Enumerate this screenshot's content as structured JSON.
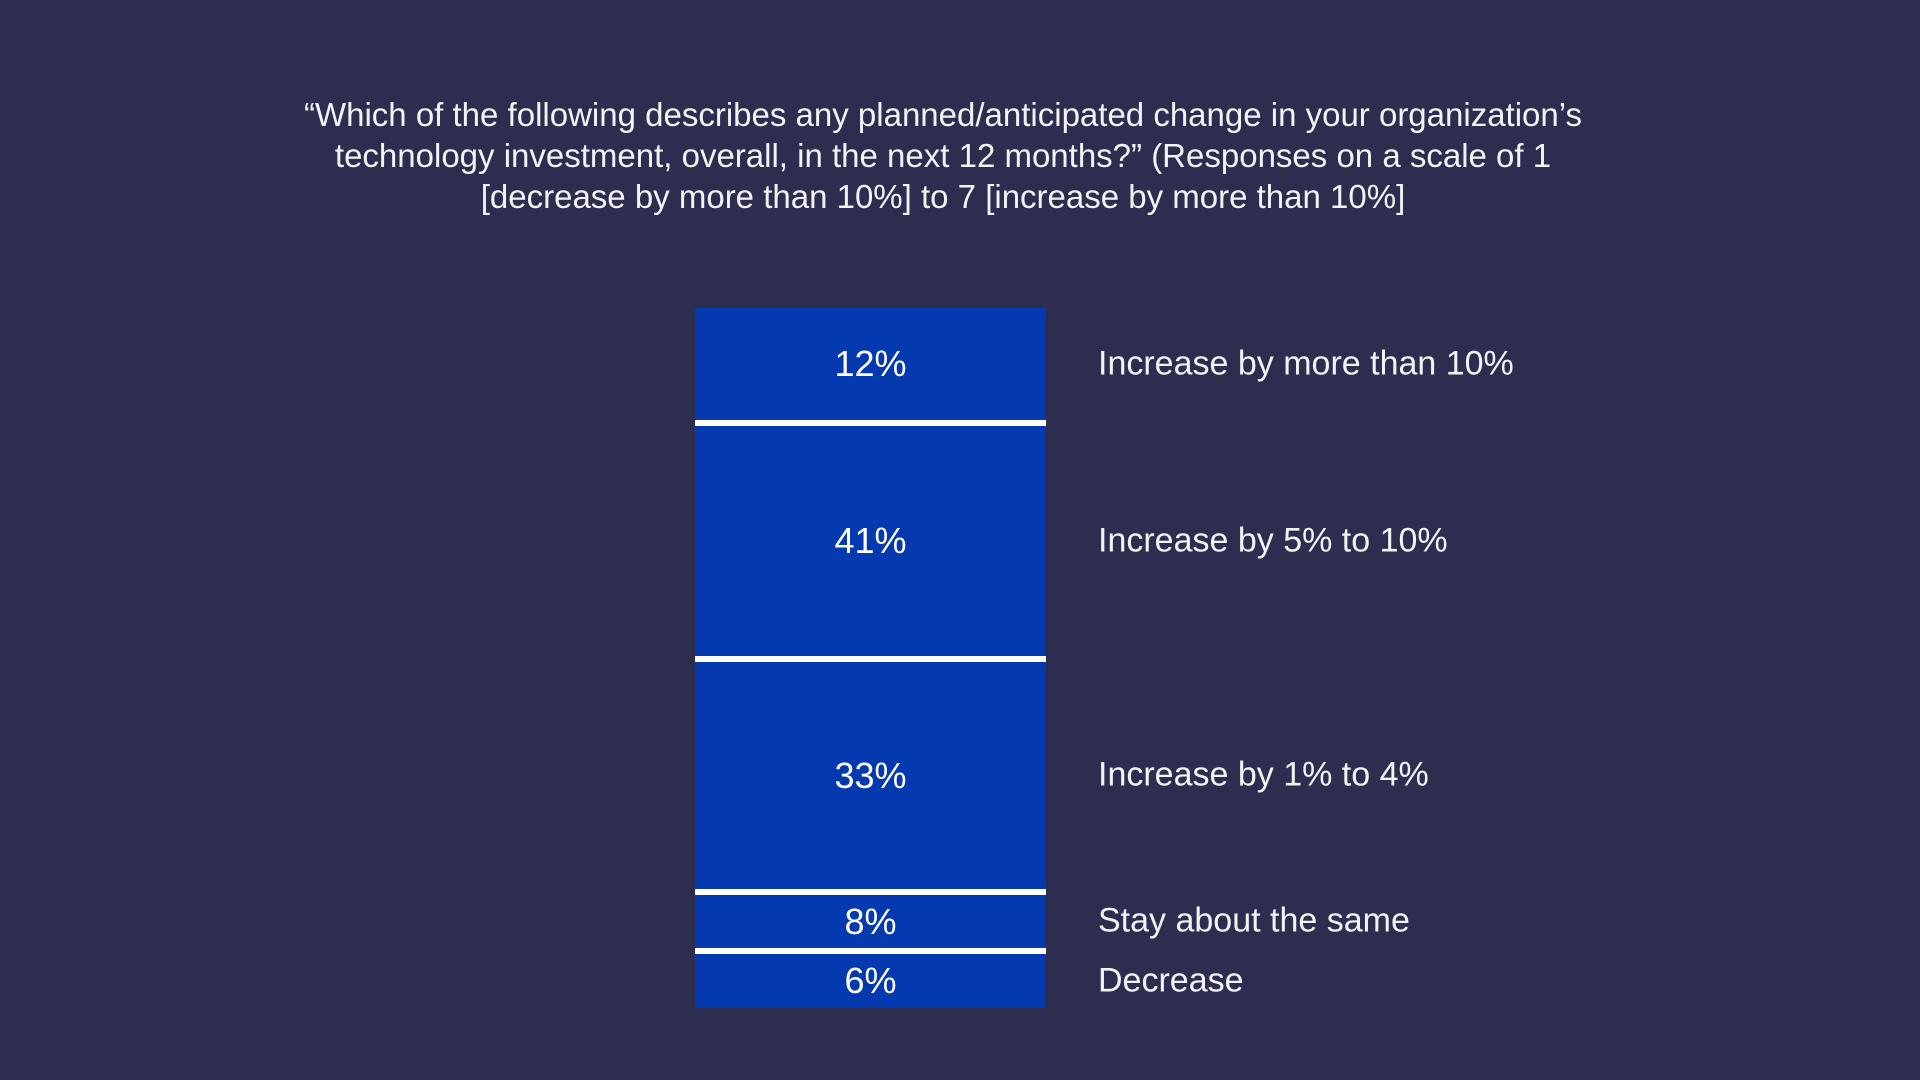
{
  "slide": {
    "background_color": "#2D2D4F",
    "title": {
      "text": "“Which of the following describes any planned/anticipated change in your organization’s technology investment, overall, in the next 12 months?” (Responses on a scale of 1 [decrease by more than 10%] to 7 [increase by more than 10%]",
      "lines": [
        "“Which of the following describes any planned/anticipated change in your organization’s",
        "technology investment, overall, in the next 12 months?” (Responses on a scale of 1",
        "[decrease by more than 10%] to 7 [increase by more than 10%]"
      ]
    }
  },
  "chart_data": {
    "type": "bar",
    "subtype": "single-stacked-vertical-column",
    "title": "“Which of the following describes any planned/anticipated change in your organization’s technology investment, overall, in the next 12 months?” (Responses on a scale of 1 [decrease by more than 10%] to 7 [increase by more than 10%]",
    "unit": "%",
    "categories": [
      "Increase by more than 10%",
      "Increase by 5% to 10%",
      "Increase by 1% to 4%",
      "Stay about the same",
      "Decrease"
    ],
    "values": [
      12,
      41,
      33,
      8,
      6
    ],
    "segments": [
      {
        "label": "Increase by more than 10%",
        "value": 12,
        "value_label": "12%"
      },
      {
        "label": "Increase by 5% to 10%",
        "value": 41,
        "value_label": "41%"
      },
      {
        "label": "Increase by 1% to 4%",
        "value": 33,
        "value_label": "33%"
      },
      {
        "label": "Stay about the same",
        "value": 8,
        "value_label": "8%"
      },
      {
        "label": "Decrease",
        "value": 6,
        "value_label": "6%"
      }
    ],
    "colors": {
      "segment_fill": "#0539B0",
      "segment_divider": "#FFFFFF",
      "value_text": "#FFFFFF",
      "label_text": "#F3F3F6",
      "background": "#2D2D4F"
    },
    "layout_hints": {
      "orientation": "vertical",
      "value_labels": "inside-center",
      "category_labels": "right-of-bar",
      "grid": false,
      "axes": "none",
      "legend": "none",
      "segment_heights_not_proportional": true
    }
  }
}
